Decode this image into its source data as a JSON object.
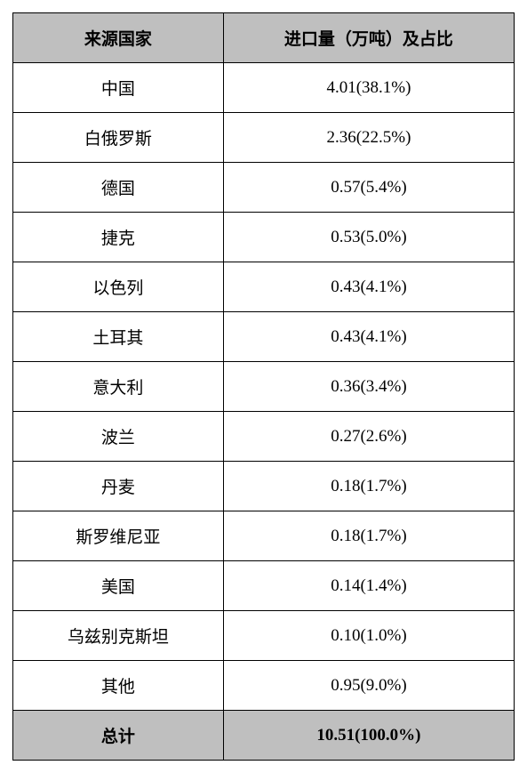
{
  "table": {
    "headers": {
      "country": "来源国家",
      "value": "进口量（万吨）及占比"
    },
    "rows": [
      {
        "country": "中国",
        "value": "4.01(38.1%)"
      },
      {
        "country": "白俄罗斯",
        "value": "2.36(22.5%)"
      },
      {
        "country": "德国",
        "value": "0.57(5.4%)"
      },
      {
        "country": "捷克",
        "value": "0.53(5.0%)"
      },
      {
        "country": "以色列",
        "value": "0.43(4.1%)"
      },
      {
        "country": "土耳其",
        "value": "0.43(4.1%)"
      },
      {
        "country": "意大利",
        "value": "0.36(3.4%)"
      },
      {
        "country": "波兰",
        "value": "0.27(2.6%)"
      },
      {
        "country": "丹麦",
        "value": "0.18(1.7%)"
      },
      {
        "country": "斯罗维尼亚",
        "value": "0.18(1.7%)"
      },
      {
        "country": "美国",
        "value": "0.14(1.4%)"
      },
      {
        "country": "乌兹别克斯坦",
        "value": "0.10(1.0%)"
      },
      {
        "country": "其他",
        "value": "0.95(9.0%)"
      }
    ],
    "total": {
      "label": "总计",
      "value": "10.51(100.0%)"
    },
    "colors": {
      "header_bg": "#bfbfbf",
      "total_bg": "#bfbfbf",
      "border": "#000000",
      "text": "#000000",
      "background": "#ffffff"
    },
    "typography": {
      "font_family": "SimSun",
      "font_size_pt": 14,
      "header_weight": "bold",
      "total_weight": "bold"
    }
  }
}
